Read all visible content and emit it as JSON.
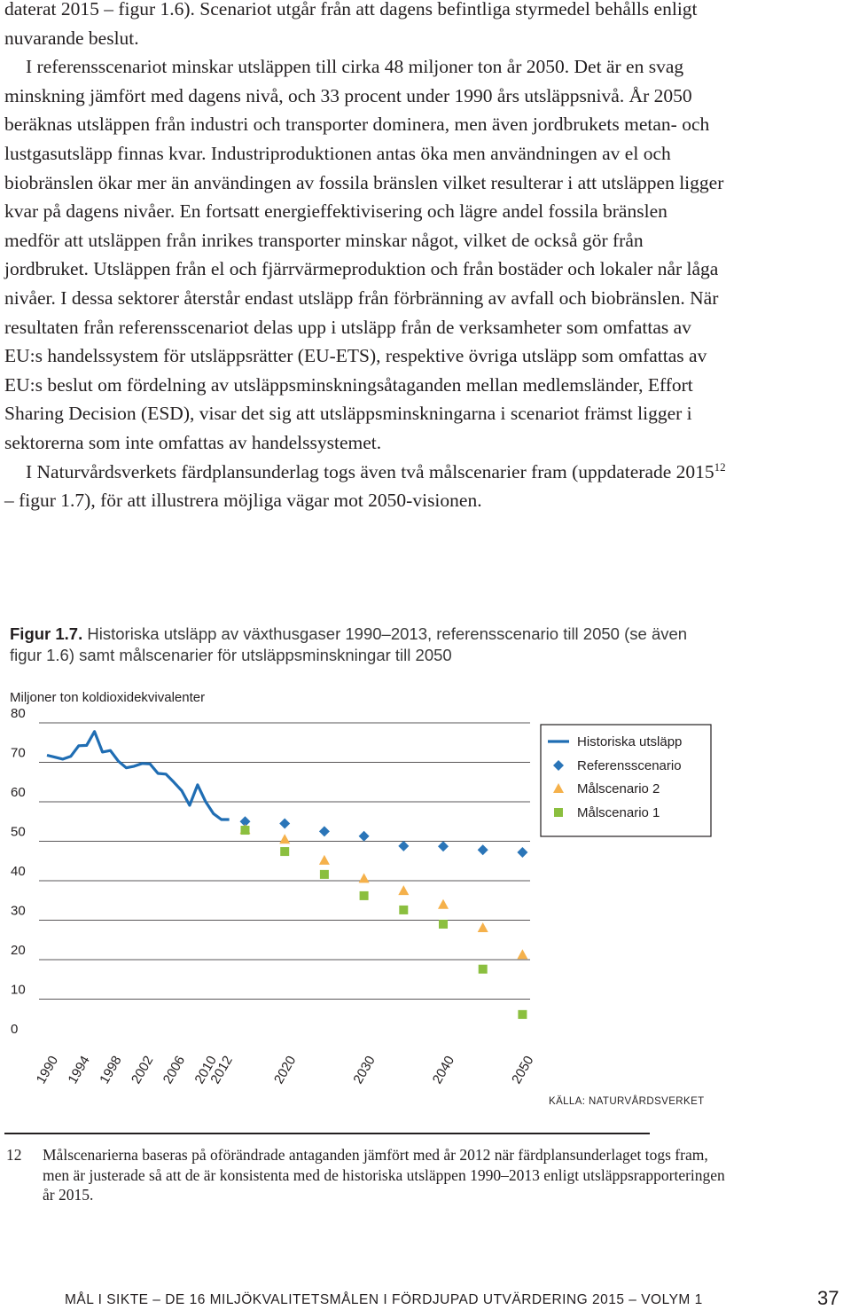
{
  "body_paragraphs": [
    {
      "indent": false,
      "html": "daterat 2015 – figur 1.6). Scenariot utgår från att dagens befintliga styrmedel behålls enligt nuvarande beslut."
    },
    {
      "indent": true,
      "html": "I referensscenariot minskar utsläppen till cirka 48 miljoner ton år 2050. Det är en svag minskning jämfört med dagens nivå, och 33 procent under 1990 års utsläppsnivå. År 2050 beräknas utsläppen från industri och transporter dominera, men även jordbrukets metan- och lustgasutsläpp finnas kvar. Industriproduktionen antas öka men användningen av el och biobränslen ökar mer än användingen av fossila bränslen vilket resulterar i att utsläppen ligger kvar på dagens nivåer. En fortsatt energieffektivisering och lägre andel fossila bränslen medför att utsläppen från inrikes transporter minskar något, vilket de också gör från jordbruket. Utsläppen från el och fjärrvärmeproduktion och från bostäder och lokaler når låga nivåer. I dessa sektorer återstår endast utsläpp från förbränning av avfall och biobränslen. När resultaten från referensscenariot delas upp i utsläpp från de verksamheter som omfattas av EU:s handelssystem för utsläppsrätter (EU-ETS), respektive övriga utsläpp som omfattas av EU:s beslut om fördelning av utsläppsminskningsåtaganden mellan medlemsländer, Effort Sharing Decision (ESD), visar det sig att utsläppsminskningarna i scenariot främst ligger i sektorerna som inte omfattas av handelssystemet."
    },
    {
      "indent": true,
      "html": "I Naturvårdsverkets färdplansunderlag togs även två målscenarier fram (uppdaterade 2015<sup>12</sup> – figur 1.7), för att illustrera möjliga vägar mot 2050-visionen."
    }
  ],
  "figure": {
    "label": "Figur 1.7.",
    "caption": "Historiska utsläpp av växthusgaser 1990–2013, referensscenario till 2050 (se även figur 1.6) samt målscenarier för utsläppsminskningar till 2050",
    "source": "KÄLLA: NATURVÅRDSVERKET"
  },
  "colors": {
    "historic": "#1f6db3",
    "reference": "#2a75b8",
    "malscenario2": "#f5b14b",
    "malscenario1": "#8bbf3f",
    "grid": "#231f20"
  },
  "chart_data": {
    "type": "line",
    "ylabel": "Miljoner ton koldioxidekvivalenter",
    "ylim": [
      0,
      80
    ],
    "y_ticks": [
      0,
      10,
      20,
      30,
      40,
      50,
      60,
      70,
      80
    ],
    "x_tick_labels": [
      "1990",
      "1994",
      "1998",
      "2002",
      "2006",
      "2010",
      "2012",
      "2020",
      "2030",
      "2040",
      "2050"
    ],
    "xlim": [
      1990,
      2050
    ],
    "grid": true,
    "legend_position": "top-right",
    "series": [
      {
        "name": "Historiska utsläpp",
        "kind": "line",
        "color_key": "historic",
        "x": [
          1990,
          1991,
          1992,
          1993,
          1994,
          1995,
          1996,
          1997,
          1998,
          1999,
          2000,
          2001,
          2002,
          2003,
          2004,
          2005,
          2006,
          2007,
          2008,
          2009,
          2010,
          2011,
          2012,
          2013
        ],
        "y": [
          71.8,
          71.3,
          70.8,
          71.5,
          74.2,
          74.3,
          77.8,
          72.6,
          73.0,
          70.3,
          68.6,
          69.0,
          69.7,
          69.6,
          67.2,
          67.0,
          65.0,
          62.8,
          59.1,
          64.3,
          60.1,
          57.0,
          55.5,
          55.5
        ]
      },
      {
        "name": "Referensscenario",
        "kind": "diamond",
        "color_key": "reference",
        "x": [
          2015,
          2020,
          2025,
          2030,
          2035,
          2040,
          2045,
          2050
        ],
        "y": [
          55.0,
          54.5,
          52.5,
          51.3,
          48.8,
          48.7,
          47.8,
          47.2
        ]
      },
      {
        "name": "Målscenario 2",
        "kind": "triangle",
        "color_key": "malscenario2",
        "x": [
          2015,
          2020,
          2025,
          2030,
          2035,
          2040,
          2045,
          2050
        ],
        "y": [
          53.0,
          50.5,
          45.2,
          40.6,
          37.5,
          34.0,
          28.1,
          21.3
        ]
      },
      {
        "name": "Målscenario 1",
        "kind": "square",
        "color_key": "malscenario1",
        "x": [
          2015,
          2020,
          2025,
          2030,
          2035,
          2040,
          2045,
          2050
        ],
        "y": [
          52.8,
          47.4,
          41.6,
          36.2,
          32.6,
          29.0,
          17.6,
          6.1
        ]
      }
    ]
  },
  "footnote": {
    "number": "12",
    "text": "Målscenarierna baseras på oförändrade antaganden jämfört med år 2012 när färdplansunderlaget togs fram, men är justerade så att de är konsistenta med de historiska utsläppen 1990–2013 enligt utsläppsrapporteringen år 2015."
  },
  "running_footer": "MÅL I SIKTE – DE 16 MILJÖKVALITETSMÅLEN I FÖRDJUPAD UTVÄRDERING 2015 – VOLYM 1",
  "page_number": "37"
}
